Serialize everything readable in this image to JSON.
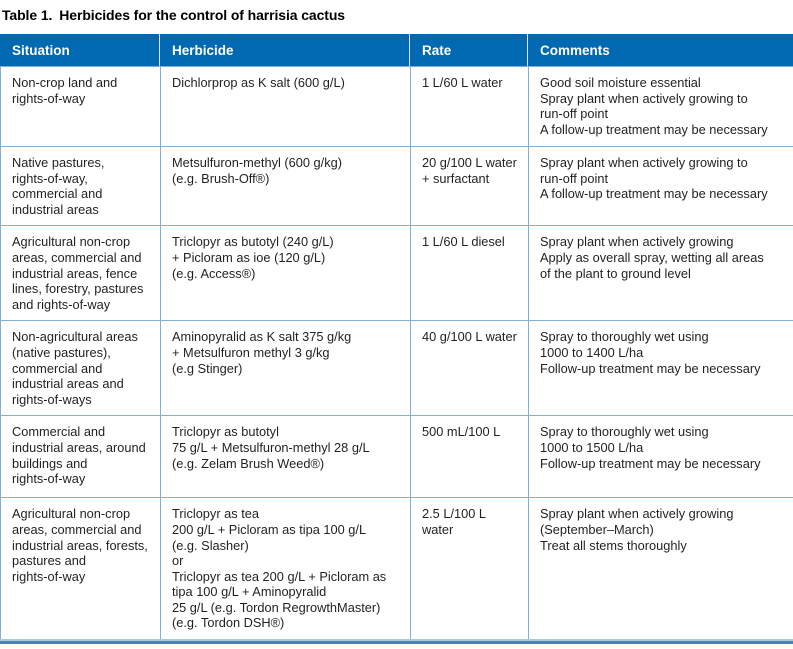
{
  "page": {
    "title_label": "Table 1.",
    "title_text": "Herbicides for the control of harrisia cactus"
  },
  "colors": {
    "header_bg": "#0069b1",
    "cell_border": "#7fb0d8",
    "body_text": "#231f20",
    "bottom_bar_light": "#a6c9e7",
    "bottom_bar_dark": "#3f86c4"
  },
  "table": {
    "headers": [
      "Situation",
      "Herbicide",
      "Rate",
      "Comments"
    ],
    "rows": [
      {
        "situation": "Non-crop land and\nrights-of-way",
        "herbicide": "Dichlorprop as K salt (600 g/L)",
        "rate": "1 L/60 L water",
        "comments": "Good soil moisture essential\nSpray plant when actively growing to\nrun-off point\nA follow-up treatment may be necessary"
      },
      {
        "situation": "Native pastures,\nrights-of-way,\ncommercial and\nindustrial areas",
        "herbicide": "Metsulfuron-methyl (600 g/kg)\n(e.g. Brush-Off®)",
        "rate": "20 g/100 L water\n+ surfactant",
        "comments": "Spray plant when actively growing to\nrun-off point\nA follow-up treatment may be necessary"
      },
      {
        "situation": "Agricultural non-crop\nareas, commercial and\nindustrial areas, fence\nlines, forestry, pastures\nand rights-of-way",
        "herbicide": "Triclopyr as butotyl (240 g/L)\n+ Picloram as ioe (120 g/L)\n(e.g. Access®)",
        "rate": "1 L/60 L diesel",
        "comments": "Spray plant when actively growing\nApply as overall spray, wetting all areas\nof the plant to ground level"
      },
      {
        "situation": "Non-agricultural areas\n(native pastures),\ncommercial and\nindustrial areas and\nrights-of-ways",
        "herbicide": "Aminopyralid as K salt 375 g/kg\n+ Metsulfuron methyl 3 g/kg\n(e.g Stinger)",
        "rate": "40 g/100 L water",
        "comments": "Spray to thoroughly wet using\n1000 to 1400 L/ha\nFollow-up treatment may be necessary"
      },
      {
        "situation": "Commercial and\nindustrial areas, around\nbuildings and\nrights-of-way",
        "herbicide": "Triclopyr as butotyl\n75 g/L + Metsulfuron-methyl 28 g/L\n(e.g. Zelam Brush Weed®)",
        "rate": "500 mL/100 L",
        "comments": "Spray to thoroughly wet using\n1000 to 1500 L/ha\nFollow-up treatment may be necessary"
      },
      {
        "situation": "Agricultural non-crop\nareas, commercial and\nindustrial areas, forests,\npastures and\nrights-of-way",
        "herbicide": "Triclopyr as tea\n200 g/L + Picloram as tipa 100 g/L\n(e.g. Slasher)\nor\nTriclopyr as tea 200 g/L + Picloram as\ntipa 100 g/L + Aminopyralid\n25 g/L (e.g. Tordon RegrowthMaster)\n(e.g. Tordon DSH®)",
        "rate": "2.5 L/100 L water",
        "comments": "Spray plant when actively growing\n(September–March)\nTreat all stems thoroughly"
      }
    ]
  }
}
